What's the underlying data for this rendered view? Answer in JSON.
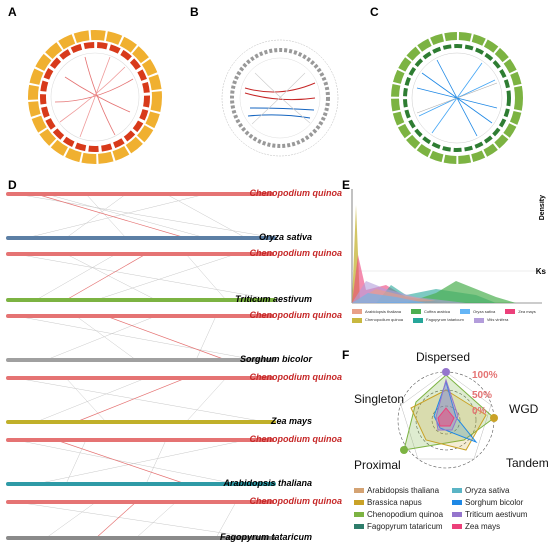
{
  "panels": {
    "A": "A",
    "B": "B",
    "C": "C",
    "D": "D",
    "E": "E",
    "F": "F"
  },
  "D": {
    "species": [
      {
        "top": "Chenopodium quinoa",
        "bottom": "Oryza sativa",
        "bottom_color": "#5c7fa5"
      },
      {
        "top": "Chenopodium quinoa",
        "bottom": "Triticum aestivum",
        "bottom_color": "#7cb342"
      },
      {
        "top": "Chenopodium quinoa",
        "bottom": "Sorghum bicolor",
        "bottom_color": "#a0a0a0"
      },
      {
        "top": "Chenopodium quinoa",
        "bottom": "Zea mays",
        "bottom_color": "#c0b02a"
      },
      {
        "top": "Chenopodium quinoa",
        "bottom": "Arabidopsis thaliana",
        "bottom_color": "#2e9aa6"
      },
      {
        "top": "Chenopodium quinoa",
        "bottom": "Fagopyrum tataricum",
        "bottom_color": "#8a8a8a"
      }
    ]
  },
  "E": {
    "ylabel": "Density",
    "xlabel": "Ks",
    "legend": [
      {
        "name": "Arabidopsis thaliana",
        "color": "#e8a088"
      },
      {
        "name": "Chenopodium quinoa",
        "color": "#c8b840"
      },
      {
        "name": "Coffea arabica",
        "color": "#4caf50"
      },
      {
        "name": "Fagopyrum tataricum",
        "color": "#26a69a"
      },
      {
        "name": "Oryza sativa",
        "color": "#64b5f6"
      },
      {
        "name": "Vitis vinifera",
        "color": "#b39ddb"
      },
      {
        "name": "Zea mays",
        "color": "#ec407a"
      }
    ]
  },
  "F": {
    "axes": [
      "Dispersed",
      "WGD",
      "Tandem",
      "Proximal",
      "Singleton"
    ],
    "pcts": [
      "100%",
      "50%",
      "0%"
    ],
    "legend": [
      {
        "name": "Arabidopsis thaliana",
        "color": "#d4a373"
      },
      {
        "name": "Oryza sativa",
        "color": "#5ab4c5"
      },
      {
        "name": "Brassica napus",
        "color": "#c9a227"
      },
      {
        "name": "Sorghum bicolor",
        "color": "#1e88e5"
      },
      {
        "name": "Chenopodium quinoa",
        "color": "#7cb342"
      },
      {
        "name": "Triticum aestivum",
        "color": "#9575cd"
      },
      {
        "name": "Fagopyrum tataricum",
        "color": "#2e7d6b"
      },
      {
        "name": "Zea mays",
        "color": "#ec407a"
      }
    ]
  }
}
